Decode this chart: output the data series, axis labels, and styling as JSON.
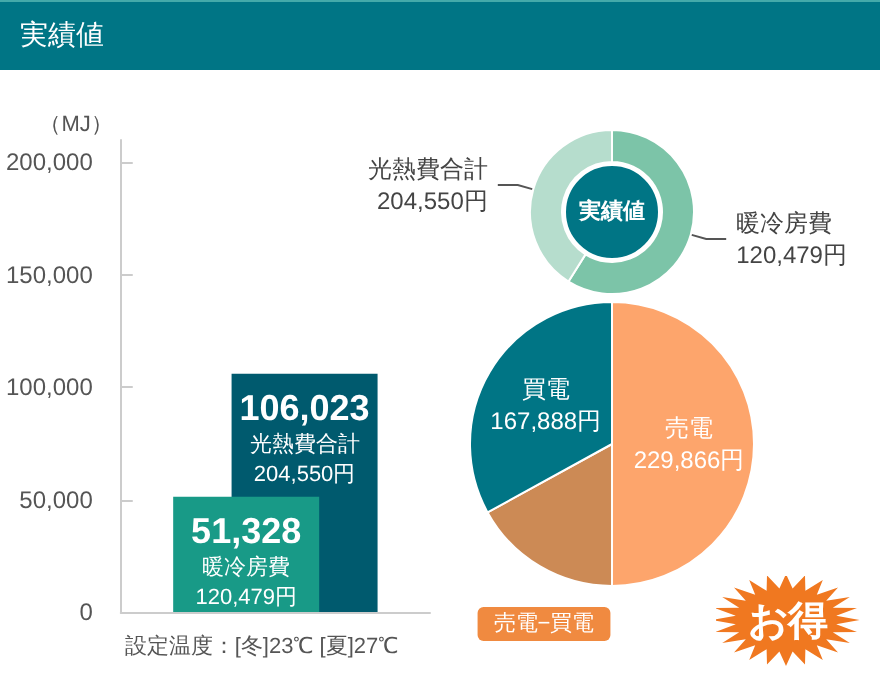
{
  "chart_data": [
    {
      "type": "bar",
      "title": "実績値",
      "ylabel": "（MJ）",
      "xlabel": "設定温度：[冬]23℃ [夏]27℃",
      "categories": [
        null
      ],
      "series": [
        {
          "color": "#189a87",
          "values": [
            51328
          ],
          "value_labels": [
            "51,328"
          ]
        },
        {
          "color": "#005a6e",
          "values": [
            106023
          ],
          "value_labels": [
            "106,023"
          ]
        }
      ],
      "annotations": [
        "暖冷房費\n120,479円",
        "光熱費合計\n204,550円"
      ],
      "ylim": [
        0,
        210000
      ],
      "yticks": [
        {
          "value": 0,
          "label": "0"
        },
        {
          "value": 50000,
          "label": "50,000"
        },
        {
          "value": 100000,
          "label": "100,000"
        },
        {
          "value": 150000,
          "label": "150,000"
        },
        {
          "value": 200000,
          "label": "200,000"
        }
      ],
      "grid": false,
      "legend": false
    },
    {
      "type": "donut",
      "categories": [
        "暖冷房費",
        "光熱費合計"
      ],
      "values": [
        58.9,
        41.1
      ],
      "colors": [
        "#7cc4a8",
        "#b6ddcd"
      ],
      "annotations": [
        "120,479円",
        "204,550円",
        "実績値"
      ],
      "legend": false
    },
    {
      "type": "pie",
      "categories": [
        "売電",
        "売電−買電",
        "買電"
      ],
      "values": [
        50,
        17,
        33
      ],
      "colors": [
        "#fda56c",
        "#cc8a55",
        "#007585"
      ],
      "annotations": [
        "229,866円",
        null,
        "167,888円",
        "お得"
      ],
      "legend": false
    }
  ]
}
